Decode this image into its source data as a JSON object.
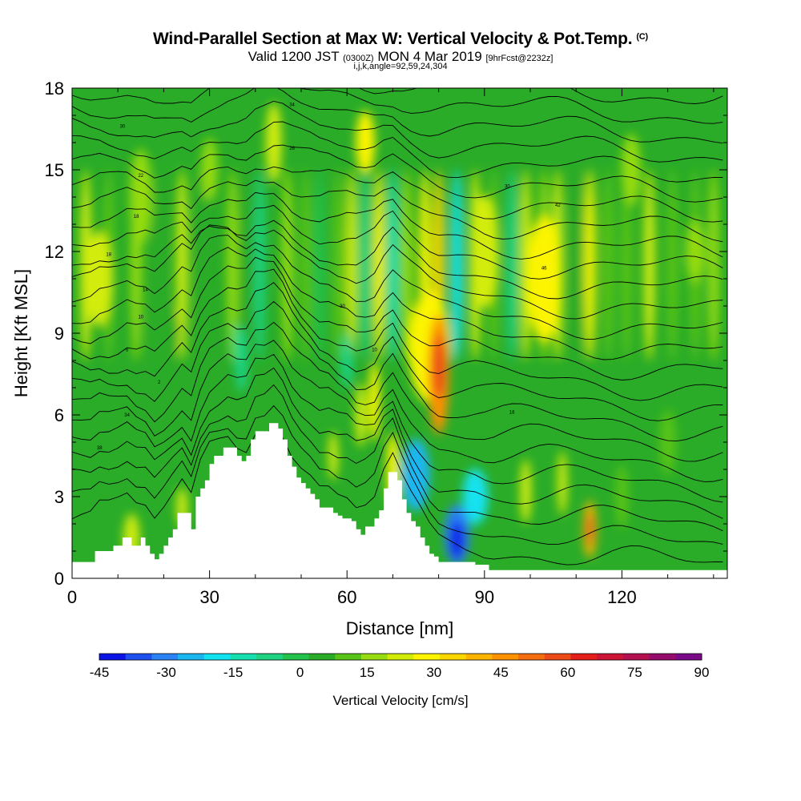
{
  "title": {
    "main": "Wind-Parallel Section at Max W: Vertical Velocity & Pot.Temp.",
    "mark": "(C)",
    "sub_prefix": "Valid 1200 JST",
    "sub_small1": "(0300Z)",
    "sub_mid": "MON 4 Mar 2019",
    "sub_small2": "[9hrFcst@2232z]",
    "params": "i,j,k,angle=92,59,24,304"
  },
  "chart_data": {
    "type": "heatmap",
    "xlabel": "Distance [nm]",
    "ylabel": "Height [Kft MSL]",
    "xlim": [
      0,
      143
    ],
    "ylim": [
      0,
      18
    ],
    "x_ticks": [
      0,
      30,
      60,
      90,
      120
    ],
    "x_tick_labels": [
      "0",
      "30",
      "60",
      "90",
      "120"
    ],
    "y_ticks": [
      0,
      3,
      6,
      9,
      12,
      15,
      18
    ],
    "y_tick_labels": [
      "0",
      "3",
      "6",
      "9",
      "12",
      "15",
      "18"
    ],
    "colorbar": {
      "title": "Vertical Velocity [cm/s]",
      "ticks": [
        -45,
        -30,
        -15,
        0,
        15,
        30,
        45,
        60,
        75,
        90
      ],
      "tick_labels": [
        "-45",
        "-30",
        "-15",
        "0",
        "15",
        "30",
        "45",
        "60",
        "75",
        "90"
      ],
      "colors": [
        "#0a14e6",
        "#1e50f0",
        "#2a82f4",
        "#1ab6f0",
        "#12e2f0",
        "#16e0b0",
        "#1ed282",
        "#22c24c",
        "#2aac28",
        "#58c418",
        "#96dc10",
        "#d2ec08",
        "#fcf400",
        "#fcd600",
        "#fcb400",
        "#fc9200",
        "#f46e10",
        "#ec4a16",
        "#e41e1a",
        "#cc1436",
        "#b41050",
        "#960c6c",
        "#7a0a88"
      ]
    },
    "terrain_profile": [
      [
        0,
        0.6
      ],
      [
        4,
        0.6
      ],
      [
        5,
        1.0
      ],
      [
        8,
        1.0
      ],
      [
        9,
        1.2
      ],
      [
        10,
        1.2
      ],
      [
        11,
        1.5
      ],
      [
        12,
        1.5
      ],
      [
        13,
        1.2
      ],
      [
        14,
        1.2
      ],
      [
        15,
        1.5
      ],
      [
        16,
        1.2
      ],
      [
        17,
        0.9
      ],
      [
        18,
        0.7
      ],
      [
        19,
        0.9
      ],
      [
        20,
        1.2
      ],
      [
        21,
        1.5
      ],
      [
        22,
        1.8
      ],
      [
        23,
        2.4
      ],
      [
        24,
        2.4
      ],
      [
        25,
        2.4
      ],
      [
        26,
        1.8
      ],
      [
        27,
        3.0
      ],
      [
        28,
        3.3
      ],
      [
        29,
        3.6
      ],
      [
        30,
        4.2
      ],
      [
        31,
        4.5
      ],
      [
        32,
        4.5
      ],
      [
        33,
        4.8
      ],
      [
        34,
        4.8
      ],
      [
        35,
        4.8
      ],
      [
        36,
        4.5
      ],
      [
        37,
        4.3
      ],
      [
        38,
        4.5
      ],
      [
        39,
        5.1
      ],
      [
        40,
        5.4
      ],
      [
        41,
        5.4
      ],
      [
        42,
        5.4
      ],
      [
        43,
        5.7
      ],
      [
        44,
        5.7
      ],
      [
        45,
        5.5
      ],
      [
        46,
        5.1
      ],
      [
        47,
        4.5
      ],
      [
        48,
        4.1
      ],
      [
        49,
        3.7
      ],
      [
        50,
        3.5
      ],
      [
        51,
        3.3
      ],
      [
        52,
        3.1
      ],
      [
        53,
        2.9
      ],
      [
        54,
        2.6
      ],
      [
        55,
        2.6
      ],
      [
        56,
        2.6
      ],
      [
        57,
        2.4
      ],
      [
        58,
        2.3
      ],
      [
        59,
        2.2
      ],
      [
        60,
        2.2
      ],
      [
        61,
        2.1
      ],
      [
        62,
        1.8
      ],
      [
        63,
        1.6
      ],
      [
        64,
        1.9
      ],
      [
        65,
        1.9
      ],
      [
        66,
        2.2
      ],
      [
        67,
        2.5
      ],
      [
        68,
        3.3
      ],
      [
        69,
        3.9
      ],
      [
        70,
        3.9
      ],
      [
        71,
        3.6
      ],
      [
        72,
        2.9
      ],
      [
        73,
        2.4
      ],
      [
        74,
        2.1
      ],
      [
        75,
        1.9
      ],
      [
        76,
        1.5
      ],
      [
        77,
        1.2
      ],
      [
        78,
        0.9
      ],
      [
        79,
        0.8
      ],
      [
        80,
        0.6
      ],
      [
        84,
        0.6
      ],
      [
        88,
        0.5
      ],
      [
        91,
        0.3
      ],
      [
        143,
        0.3
      ]
    ],
    "theta_contours": {
      "count": 26,
      "labels": [
        "34",
        "30",
        "22",
        "26",
        "30",
        "18",
        "18",
        "14",
        "10",
        "6",
        "2",
        "34",
        "38",
        "42",
        "46",
        "30",
        "10",
        "18"
      ]
    },
    "velocity_features": [
      {
        "x": 80,
        "y": 7.5,
        "w": 60,
        "note": "updraft max"
      },
      {
        "x": 84,
        "y": 1.5,
        "w": -42,
        "note": "downdraft min"
      },
      {
        "x": 113,
        "y": 1.8,
        "w": 52
      },
      {
        "x": 73,
        "y": 5.5,
        "w": -14
      },
      {
        "x": 67,
        "y": 6.5,
        "w": 28
      },
      {
        "x": 64,
        "y": 10.0,
        "w": 22
      },
      {
        "x": 103,
        "y": 10.5,
        "w": 30
      },
      {
        "x": 6,
        "y": 11.0,
        "w": 28
      },
      {
        "x": 57,
        "y": 4.0,
        "w": 20
      },
      {
        "x": 99,
        "y": 3.0,
        "w": 22
      }
    ]
  }
}
